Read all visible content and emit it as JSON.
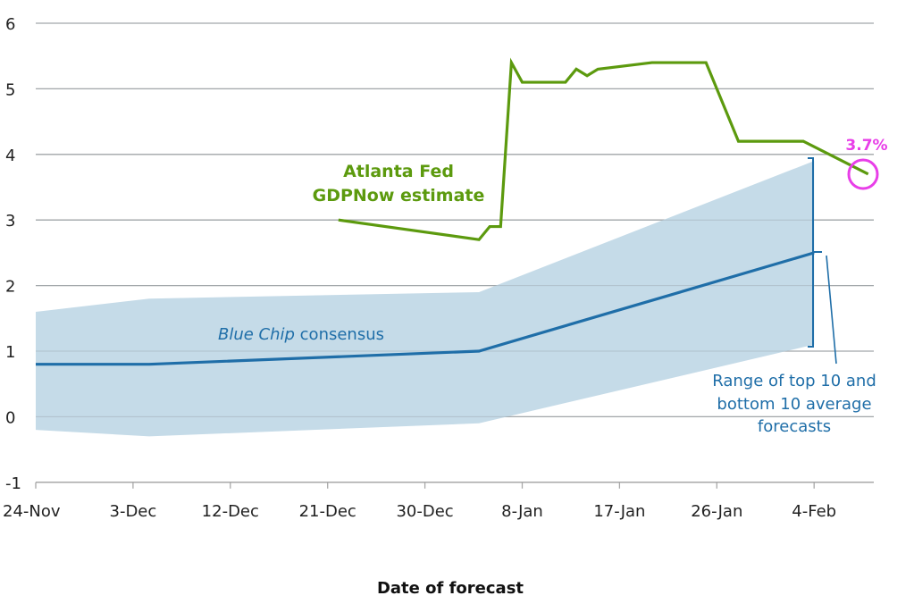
{
  "chart_data": {
    "type": "line",
    "title": "",
    "xlabel": "Date of forecast",
    "ylabel": "",
    "ylim": [
      -1,
      6
    ],
    "y_ticks": [
      "6",
      "5",
      "4",
      "3",
      "2",
      "1",
      "0",
      "-1"
    ],
    "y_tick_values": [
      6,
      5,
      4,
      3,
      2,
      1,
      0,
      -1
    ],
    "x_ticks": [
      "24-Nov",
      "3-Dec",
      "12-Dec",
      "21-Dec",
      "30-Dec",
      "8-Jan",
      "17-Jan",
      "26-Jan",
      "4-Feb"
    ],
    "x_tick_days": [
      0,
      9,
      18,
      27,
      36,
      45,
      54,
      63,
      72
    ],
    "x_range_days": [
      0,
      77
    ],
    "grid": "horizontal",
    "series": [
      {
        "name": "Atlanta Fed GDPNow estimate",
        "color": "#5c9a0e",
        "x_days": [
          28,
          41,
          42,
          43,
          44,
          45,
          49,
          50,
          51,
          52,
          57,
          62,
          65,
          71,
          77
        ],
        "values": [
          3.0,
          2.7,
          2.9,
          2.9,
          5.4,
          5.1,
          5.1,
          5.3,
          5.2,
          5.3,
          5.4,
          5.4,
          4.2,
          4.2,
          3.7
        ]
      },
      {
        "name": "Blue Chip consensus",
        "color": "#1f6ea8",
        "x_days": [
          0,
          10.5,
          41,
          72
        ],
        "values": [
          0.8,
          0.8,
          1.0,
          2.5
        ]
      }
    ],
    "band": {
      "name": "Range of top 10 and bottom 10 average forecasts",
      "color": "#c5dbe8",
      "x_days": [
        0,
        10.5,
        41,
        72
      ],
      "upper": [
        1.6,
        1.8,
        1.9,
        3.9
      ],
      "lower": [
        -0.2,
        -0.3,
        -0.1,
        1.1
      ]
    },
    "annotations": {
      "gdpnow_line1": "Atlanta Fed",
      "gdpnow_line2": "GDPNow estimate",
      "bluechip_italic": "Blue Chip",
      "bluechip_rest": " consensus",
      "range_line1": "Range of top 10 and",
      "range_line2": "bottom 10 average",
      "range_line3": "forecasts",
      "latest_value": "3.7%",
      "highlight_color": "#e83ee8"
    }
  }
}
